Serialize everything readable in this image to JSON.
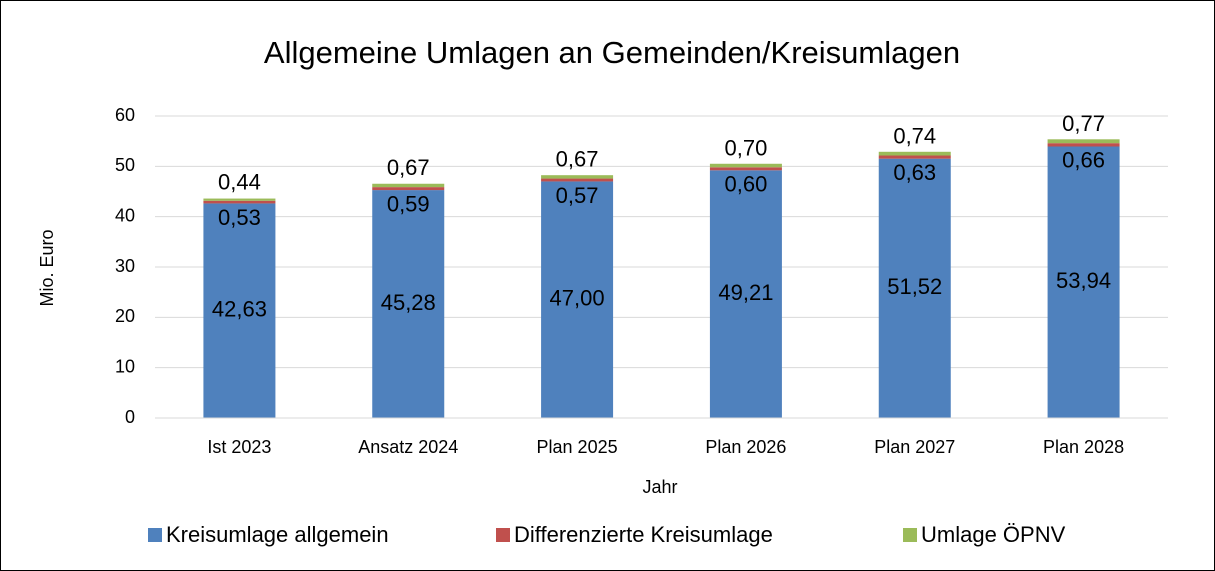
{
  "chart_data": {
    "type": "bar",
    "stacked": true,
    "title": "Allgemeine Umlagen an Gemeinden/Kreisumlagen",
    "x_label": "Jahr",
    "y_label": "Mio. Euro",
    "categories": [
      "Ist 2023",
      "Ansatz 2024",
      "Plan 2025",
      "Plan 2026",
      "Plan 2027",
      "Plan 2028"
    ],
    "series": [
      {
        "name": "Kreisumlage allgemein",
        "color": "#4f81bd",
        "values": [
          42.63,
          45.28,
          47.0,
          49.21,
          51.52,
          53.94
        ],
        "value_labels": [
          "42,63",
          "45,28",
          "47,00",
          "49,21",
          "51,52",
          "53,94"
        ]
      },
      {
        "name": "Differenzierte Kreisumlage",
        "color": "#c0504d",
        "values": [
          0.53,
          0.59,
          0.57,
          0.6,
          0.63,
          0.66
        ],
        "value_labels": [
          "0,53",
          "0,59",
          "0,57",
          "0,60",
          "0,63",
          "0,66"
        ]
      },
      {
        "name": "Umlage ÖPNV",
        "color": "#9bbb59",
        "values": [
          0.44,
          0.67,
          0.67,
          0.7,
          0.74,
          0.77
        ],
        "value_labels": [
          "0,44",
          "0,67",
          "0,67",
          "0,70",
          "0,74",
          "0,77"
        ]
      }
    ],
    "ylim": [
      0,
      60
    ],
    "yticks": [
      0,
      10,
      20,
      30,
      40,
      50,
      60
    ],
    "grid": true,
    "legend": "bottom"
  }
}
